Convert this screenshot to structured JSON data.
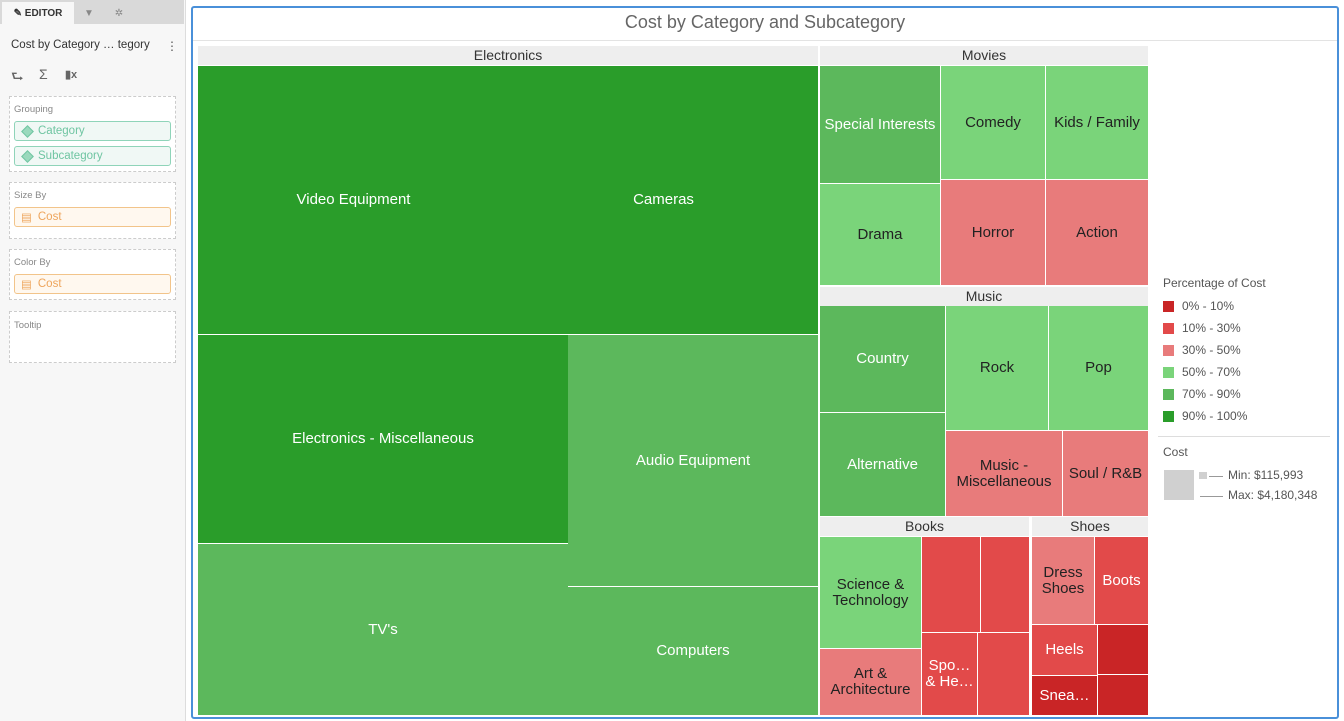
{
  "editor": {
    "tabs": [
      {
        "label": "EDITOR",
        "icon": "pencil-icon"
      },
      {
        "icon": "filter-icon"
      },
      {
        "icon": "gear-icon"
      }
    ],
    "widget_title": "Cost by Category … tegory",
    "tools": [
      {
        "icon": "swap-axes-icon",
        "glyph": "⮑"
      },
      {
        "icon": "sigma-icon",
        "glyph": "Σ"
      },
      {
        "icon": "clear-chart-icon",
        "glyph": "▮x"
      }
    ],
    "grouping": {
      "label": "Grouping",
      "items": [
        "Category",
        "Subcategory"
      ]
    },
    "size_by": {
      "label": "Size By",
      "item": "Cost"
    },
    "color_by": {
      "label": "Color By",
      "item": "Cost"
    },
    "tooltip": {
      "label": "Tooltip"
    }
  },
  "chart_data": {
    "type": "treemap",
    "title": "Cost by Category and Subcategory",
    "groups": [
      {
        "name": "Electronics",
        "children": [
          {
            "name": "Video Equipment",
            "color_bin": "90% - 100%"
          },
          {
            "name": "Cameras",
            "color_bin": "90% - 100%"
          },
          {
            "name": "Electronics - Miscellaneous",
            "color_bin": "90% - 100%"
          },
          {
            "name": "TV's",
            "color_bin": "70% - 90%"
          },
          {
            "name": "Audio Equipment",
            "color_bin": "70% - 90%"
          },
          {
            "name": "Computers",
            "color_bin": "70% - 90%"
          }
        ]
      },
      {
        "name": "Movies",
        "children": [
          {
            "name": "Special Interests",
            "color_bin": "70% - 90%"
          },
          {
            "name": "Comedy",
            "color_bin": "50% - 70%"
          },
          {
            "name": "Kids / Family",
            "color_bin": "50% - 70%"
          },
          {
            "name": "Drama",
            "color_bin": "50% - 70%"
          },
          {
            "name": "Horror",
            "color_bin": "30% - 50%"
          },
          {
            "name": "Action",
            "color_bin": "30% - 50%"
          }
        ]
      },
      {
        "name": "Music",
        "children": [
          {
            "name": "Country",
            "color_bin": "70% - 90%"
          },
          {
            "name": "Rock",
            "color_bin": "50% - 70%"
          },
          {
            "name": "Pop",
            "color_bin": "50% - 70%"
          },
          {
            "name": "Alternative",
            "color_bin": "70% - 90%"
          },
          {
            "name": "Music - Miscellaneous",
            "color_bin": "30% - 50%"
          },
          {
            "name": "Soul / R&B",
            "color_bin": "30% - 50%"
          }
        ]
      },
      {
        "name": "Books",
        "children": [
          {
            "name": "Science & Technology",
            "color_bin": "50% - 70%"
          },
          {
            "name": "Art & Architecture",
            "color_bin": "30% - 50%"
          },
          {
            "name": "",
            "color_bin": "10% - 30%"
          },
          {
            "name": "",
            "color_bin": "10% - 30%"
          },
          {
            "name": "Spo… & He…",
            "color_bin": "10% - 30%"
          },
          {
            "name": "",
            "color_bin": "10% - 30%"
          }
        ]
      },
      {
        "name": "Shoes",
        "children": [
          {
            "name": "Dress Shoes",
            "color_bin": "30% - 50%"
          },
          {
            "name": "Boots",
            "color_bin": "10% - 30%"
          },
          {
            "name": "Heels",
            "color_bin": "10% - 30%"
          },
          {
            "name": "",
            "color_bin": "0% - 10%"
          },
          {
            "name": "Snea…",
            "color_bin": "0% - 10%"
          },
          {
            "name": "",
            "color_bin": "0% - 10%"
          }
        ]
      }
    ],
    "legend": {
      "color_title": "Percentage of Cost",
      "bins": [
        {
          "label": "0% - 10%",
          "color": "#c92526"
        },
        {
          "label": "10% - 30%",
          "color": "#e24a4a"
        },
        {
          "label": "30% - 50%",
          "color": "#e87b7b"
        },
        {
          "label": "50% - 70%",
          "color": "#7ad47a"
        },
        {
          "label": "70% - 90%",
          "color": "#5cb85c"
        },
        {
          "label": "90% - 100%",
          "color": "#2a9d2a"
        }
      ],
      "size_title": "Cost",
      "min": "Min: $115,993",
      "max": "Max: $4,180,348"
    }
  }
}
